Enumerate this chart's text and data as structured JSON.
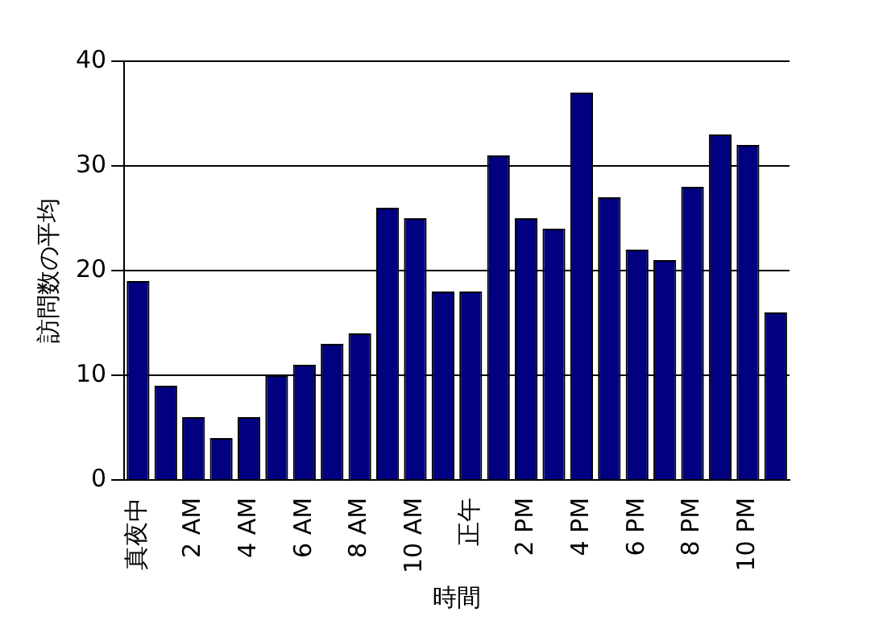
{
  "chart_data": {
    "type": "bar",
    "xlabel": "時間",
    "ylabel": "訪問数の平均",
    "categories": [
      "真夜中",
      null,
      "2 AM",
      null,
      "4 AM",
      null,
      "6 AM",
      null,
      "8 AM",
      null,
      "10 AM",
      null,
      "正午",
      null,
      "2 PM",
      null,
      "4 PM",
      null,
      "6 PM",
      null,
      "8 PM",
      null,
      "10 PM",
      null
    ],
    "values": [
      19,
      9,
      6,
      4,
      6,
      10,
      11,
      13,
      14,
      26,
      25,
      18,
      18,
      31,
      25,
      24,
      37,
      27,
      22,
      21,
      28,
      33,
      32,
      16
    ],
    "color": "#000080",
    "ylim": [
      0,
      40
    ],
    "yticks": [
      0,
      10,
      20,
      30,
      40
    ],
    "grid": "y",
    "legend": false
  }
}
